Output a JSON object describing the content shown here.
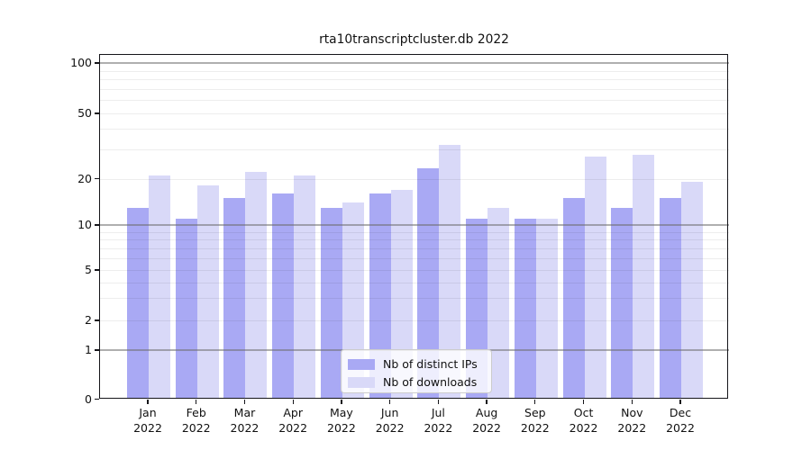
{
  "chart_data": {
    "type": "bar",
    "title": "rta10transcriptcluster.db 2022",
    "categories": [
      "Jan 2022",
      "Feb 2022",
      "Mar 2022",
      "Apr 2022",
      "May 2022",
      "Jun 2022",
      "Jul 2022",
      "Aug 2022",
      "Sep 2022",
      "Oct 2022",
      "Nov 2022",
      "Dec 2022"
    ],
    "series": [
      {
        "name": "Nb of distinct IPs",
        "color": "#a9a9f4",
        "values": [
          13,
          11,
          15,
          16,
          13,
          16,
          23,
          11,
          11,
          15,
          13,
          15
        ]
      },
      {
        "name": "Nb of downloads",
        "color": "#d9d9f8",
        "values": [
          21,
          18,
          22,
          21,
          14,
          17,
          32,
          13,
          11,
          27,
          28,
          19
        ]
      }
    ],
    "xlabel": "",
    "ylabel": "",
    "y_axis": {
      "scale": "log-like",
      "tick_values": [
        100,
        50,
        20,
        10,
        5,
        2,
        1,
        0
      ],
      "minor_grid_values": [
        2,
        3,
        4,
        5,
        6,
        7,
        8,
        9,
        20,
        30,
        40,
        50,
        60,
        70,
        80,
        90
      ],
      "major_grid_values": [
        1,
        10,
        100
      ],
      "ylim": [
        0,
        110
      ]
    },
    "grid": true,
    "legend": {
      "position": "lower center"
    }
  }
}
